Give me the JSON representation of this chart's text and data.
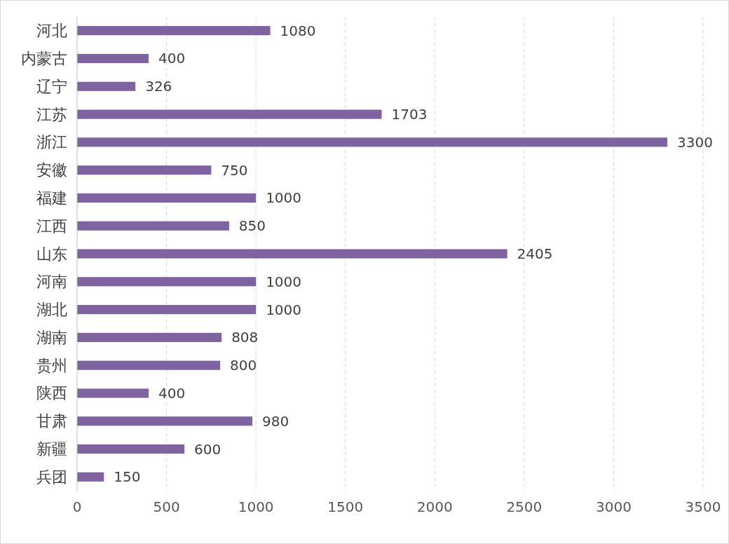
{
  "chart_data": {
    "type": "bar",
    "orientation": "horizontal",
    "categories": [
      "河北",
      "内蒙古",
      "辽宁",
      "江苏",
      "浙江",
      "安徽",
      "福建",
      "江西",
      "山东",
      "河南",
      "湖北",
      "湖南",
      "贵州",
      "陕西",
      "甘肃",
      "新疆",
      "兵团"
    ],
    "values": [
      1080,
      400,
      326,
      1703,
      3300,
      750,
      1000,
      850,
      2405,
      1000,
      1000,
      808,
      800,
      400,
      980,
      600,
      150
    ],
    "color": "#7f62a0",
    "xlim": [
      0,
      3500
    ],
    "xticks": [
      0,
      500,
      1000,
      1500,
      2000,
      2500,
      3000,
      3500
    ],
    "grid": "x",
    "data_labels": true
  }
}
